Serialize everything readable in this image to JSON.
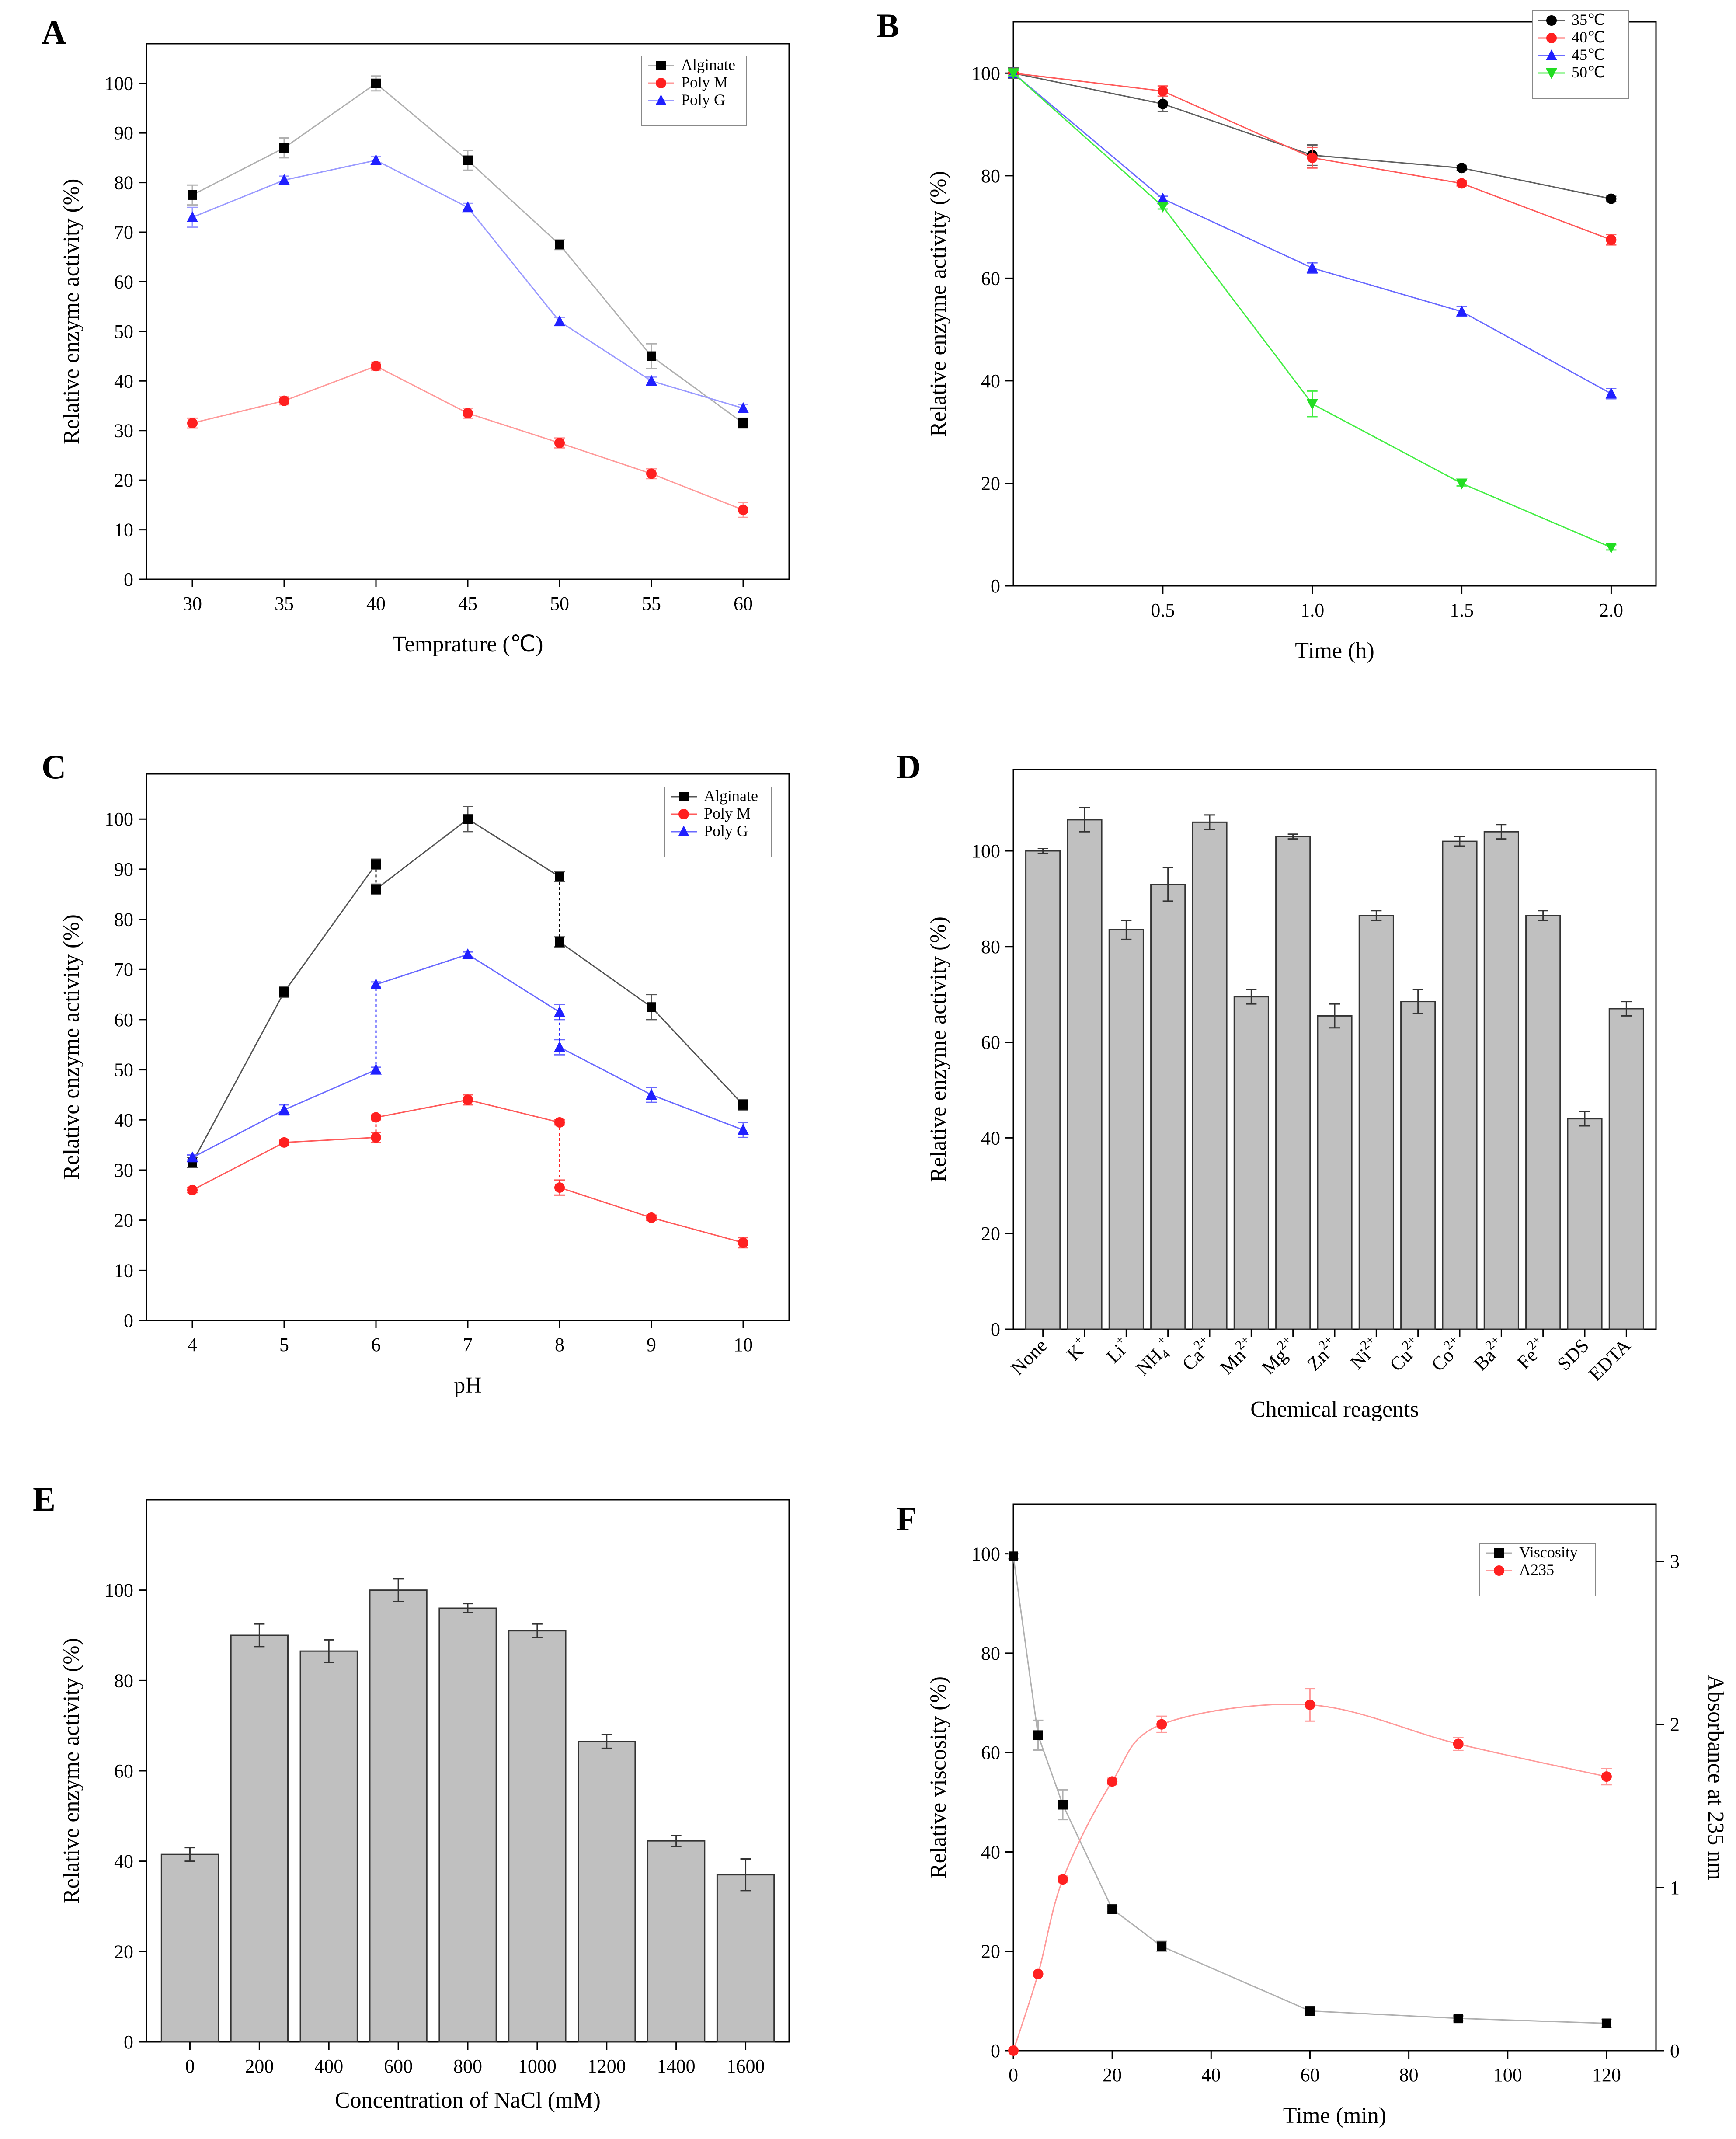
{
  "figure": {
    "panels": [
      "A",
      "B",
      "C",
      "D",
      "E",
      "F"
    ]
  },
  "chart_data": [
    {
      "id": "A",
      "type": "line",
      "title": "",
      "xlabel": "Temprature (℃)",
      "ylabel": "Relative enzyme activity (%)",
      "x": [
        30,
        35,
        40,
        45,
        50,
        55,
        60
      ],
      "xticks": [
        30,
        35,
        40,
        45,
        50,
        55,
        60
      ],
      "xlim": [
        27.5,
        62.5
      ],
      "ylim": [
        0,
        108
      ],
      "yticks": [
        0,
        10,
        20,
        30,
        40,
        50,
        60,
        70,
        80,
        90,
        100
      ],
      "legend_position": "top-right",
      "series": [
        {
          "name": "Alginate",
          "color": "#000000",
          "line_color": "#b0b0b0",
          "marker": "square",
          "values": [
            77.5,
            87,
            100,
            84.5,
            67.5,
            45,
            31.5
          ],
          "errors": [
            2,
            2,
            1.5,
            2,
            1,
            2.5,
            1
          ]
        },
        {
          "name": "Poly M",
          "color": "#ff2020",
          "line_color": "#ff9a9a",
          "marker": "circle",
          "values": [
            31.5,
            36,
            43,
            33.5,
            27.5,
            21.3,
            14
          ],
          "errors": [
            1,
            0.8,
            0.8,
            1,
            1,
            1,
            1.5
          ]
        },
        {
          "name": "Poly G",
          "color": "#2020ff",
          "line_color": "#9a9aff",
          "marker": "triangle",
          "values": [
            73,
            80.5,
            84.5,
            75,
            52,
            40,
            34.5
          ],
          "errors": [
            2,
            0.8,
            0.8,
            0.8,
            0.8,
            0.8,
            0.8
          ]
        }
      ]
    },
    {
      "id": "B",
      "type": "line",
      "title": "",
      "xlabel": "Time (h)",
      "ylabel": "Relative enzyme activity (%)",
      "x": [
        0,
        0.5,
        1.0,
        1.5,
        2.0
      ],
      "xticks": [
        0.5,
        1.0,
        1.5,
        2.0
      ],
      "xtick_labels": [
        "0.5",
        "1.0",
        "1.5",
        "2.0"
      ],
      "xlim": [
        0,
        2.15
      ],
      "ylim": [
        0,
        110
      ],
      "yticks": [
        0,
        20,
        40,
        60,
        80,
        100
      ],
      "legend_position": "top-right",
      "series": [
        {
          "name": "35℃",
          "color": "#000000",
          "line_color": "#606060",
          "marker": "circle",
          "values": [
            100,
            94,
            84,
            81.5,
            75.5
          ],
          "errors": [
            1,
            1.5,
            2,
            0.5,
            0.5
          ]
        },
        {
          "name": "40℃",
          "color": "#ff2020",
          "line_color": "#ff5a5a",
          "marker": "circle",
          "values": [
            100,
            96.5,
            83.5,
            78.5,
            67.5
          ],
          "errors": [
            0.5,
            1,
            2,
            0.5,
            1
          ]
        },
        {
          "name": "45℃",
          "color": "#2020ff",
          "line_color": "#6a6aff",
          "marker": "triangle",
          "values": [
            100,
            75.5,
            62,
            53.5,
            37.5
          ],
          "errors": [
            0.5,
            0.5,
            1,
            1,
            1
          ]
        },
        {
          "name": "50℃",
          "color": "#22dd22",
          "line_color": "#44ee44",
          "marker": "triangle-down",
          "values": [
            100,
            74,
            35.5,
            20,
            7.5
          ],
          "errors": [
            0.5,
            0.5,
            2.5,
            0.5,
            0.5
          ]
        }
      ]
    },
    {
      "id": "C",
      "type": "line",
      "title": "",
      "xlabel": "pH",
      "ylabel": "Relative enzyme activity (%)",
      "xticks": [
        4,
        5,
        6,
        7,
        8,
        9,
        10
      ],
      "xlim": [
        3.5,
        10.5
      ],
      "ylim": [
        0,
        109
      ],
      "yticks": [
        0,
        10,
        20,
        30,
        40,
        50,
        60,
        70,
        80,
        90,
        100
      ],
      "legend_position": "top-right",
      "series": [
        {
          "name": "Alginate",
          "color": "#000000",
          "line_color": "#555555",
          "marker": "square",
          "segments": [
            {
              "x": [
                4,
                5,
                6
              ],
              "values": [
                31.5,
                65.5,
                91
              ],
              "errors": [
                1,
                1,
                1
              ]
            },
            {
              "x": [
                6,
                7,
                8
              ],
              "values": [
                86,
                100,
                88.5
              ],
              "errors": [
                1,
                2.5,
                1
              ]
            },
            {
              "x": [
                8,
                9,
                10
              ],
              "values": [
                75.5,
                62.5,
                43
              ],
              "errors": [
                1,
                2.5,
                1
              ]
            }
          ],
          "dotted_links": [
            [
              6,
              91,
              86
            ],
            [
              8,
              88.5,
              75.5
            ]
          ]
        },
        {
          "name": "Poly M",
          "color": "#ff2020",
          "line_color": "#ff5a5a",
          "marker": "circle",
          "segments": [
            {
              "x": [
                4,
                5,
                6
              ],
              "values": [
                26,
                35.5,
                36.5
              ],
              "errors": [
                0.5,
                0.5,
                1
              ]
            },
            {
              "x": [
                6,
                7,
                8
              ],
              "values": [
                40.5,
                44,
                39.5
              ],
              "errors": [
                0.5,
                1,
                0.5
              ]
            },
            {
              "x": [
                8,
                9,
                10
              ],
              "values": [
                26.5,
                20.5,
                15.5
              ],
              "errors": [
                1.5,
                0.5,
                1
              ]
            }
          ],
          "dotted_links": [
            [
              6,
              36.5,
              40.5
            ],
            [
              8,
              39.5,
              26.5
            ]
          ]
        },
        {
          "name": "Poly G",
          "color": "#2020ff",
          "line_color": "#6a6aff",
          "marker": "triangle",
          "segments": [
            {
              "x": [
                4,
                5,
                6
              ],
              "values": [
                32.5,
                42,
                50
              ],
              "errors": [
                0.5,
                1,
                0.5
              ]
            },
            {
              "x": [
                6,
                7,
                8
              ],
              "values": [
                67,
                73,
                61.5
              ],
              "errors": [
                0.5,
                0.5,
                1.5
              ]
            },
            {
              "x": [
                8,
                9,
                10
              ],
              "values": [
                54.5,
                45,
                38
              ],
              "errors": [
                1.5,
                1.5,
                1.5
              ]
            }
          ],
          "dotted_links": [
            [
              6,
              50,
              67
            ],
            [
              8,
              61.5,
              54.5
            ]
          ]
        }
      ]
    },
    {
      "id": "D",
      "type": "bar",
      "title": "",
      "xlabel": "Chemical reagents",
      "ylabel": "Relative enzyme activity (%)",
      "categories": [
        "None",
        "K",
        "Li",
        "NH",
        "Ca",
        "Mn",
        "Mg",
        "Zn",
        "Ni",
        "Cu",
        "Co",
        "Ba",
        "Fe",
        "SDS",
        "EDTA"
      ],
      "category_sup": [
        "",
        "+",
        "+",
        "+",
        "2+",
        "2+",
        "2+",
        "2+",
        "2+",
        "2+",
        "2+",
        "2+",
        "2+",
        "",
        ""
      ],
      "category_sub": [
        "",
        "",
        "",
        "4",
        "",
        "",
        "",
        "",
        "",
        "",
        "",
        "",
        "",
        "",
        ""
      ],
      "values": [
        100,
        106.5,
        83.5,
        93,
        106,
        69.5,
        103,
        65.5,
        86.5,
        68.5,
        102,
        104,
        86.5,
        44,
        67
      ],
      "errors": [
        0.5,
        2.5,
        2,
        3.5,
        1.5,
        1.5,
        0.5,
        2.5,
        1,
        2.5,
        1,
        1.5,
        1,
        1.5,
        1.5
      ],
      "ylim": [
        0,
        117
      ],
      "yticks": [
        0,
        20,
        40,
        60,
        80,
        100
      ],
      "bar_color": "#c0c0c0"
    },
    {
      "id": "E",
      "type": "bar",
      "title": "",
      "xlabel": "Concentration of NaCl (mM)",
      "ylabel": "Relative enzyme activity (%)",
      "categories": [
        "0",
        "200",
        "400",
        "600",
        "800",
        "1000",
        "1200",
        "1400",
        "1600"
      ],
      "values": [
        41.5,
        90,
        86.5,
        100,
        96,
        91,
        66.5,
        44.5,
        37
      ],
      "errors": [
        1.5,
        2.5,
        2.5,
        2.5,
        1,
        1.5,
        1.5,
        1.2,
        3.5
      ],
      "ylim": [
        0,
        120
      ],
      "yticks": [
        0,
        20,
        40,
        60,
        80,
        100
      ],
      "bar_color": "#c0c0c0"
    },
    {
      "id": "F",
      "type": "line",
      "title": "",
      "xlabel": "Time (min)",
      "ylabel": "Relative viscosity (%)",
      "ylabel_right": "Absorbance at 235 nm",
      "xticks": [
        0,
        20,
        40,
        60,
        80,
        100,
        120
      ],
      "xlim": [
        0,
        130
      ],
      "ylim": [
        0,
        110
      ],
      "yticks": [
        0,
        20,
        40,
        60,
        80,
        100
      ],
      "ylim_right": [
        0,
        3.35
      ],
      "yticks_right": [
        0,
        1,
        2,
        3
      ],
      "legend_position": "top-right",
      "series": [
        {
          "name": "Viscosity",
          "axis": "left",
          "color": "#000000",
          "line_color": "#b0b0b0",
          "marker": "square",
          "x": [
            0,
            5,
            10,
            20,
            30,
            60,
            90,
            120
          ],
          "values": [
            99.5,
            63.5,
            49.5,
            28.5,
            21,
            8,
            6.5,
            5.5
          ],
          "errors": [
            0.5,
            3,
            3,
            0.5,
            1,
            0.5,
            0.5,
            0.8
          ]
        },
        {
          "name": "A235",
          "axis": "right",
          "color": "#ff2020",
          "line_color": "#ff9a9a",
          "marker": "circle",
          "x": [
            0,
            5,
            10,
            20,
            30,
            60,
            90,
            120
          ],
          "values": [
            0,
            0.47,
            1.05,
            1.65,
            2.0,
            2.12,
            1.88,
            1.68
          ],
          "errors": [
            0,
            0,
            0.02,
            0.02,
            0.05,
            0.1,
            0.04,
            0.05
          ]
        }
      ]
    }
  ]
}
